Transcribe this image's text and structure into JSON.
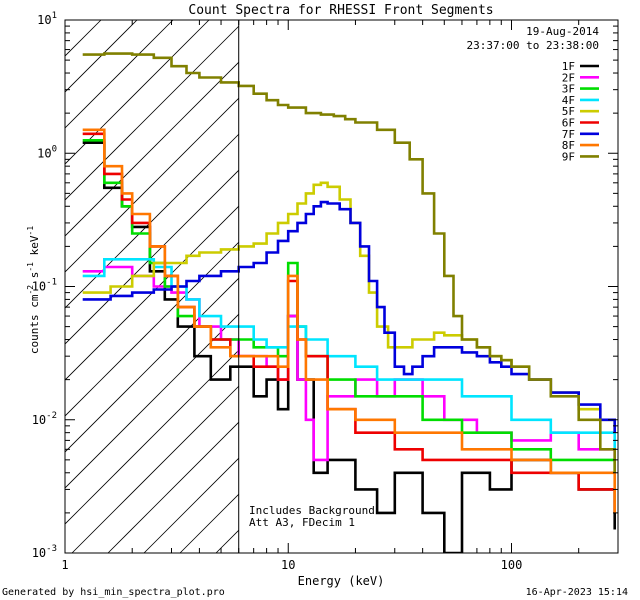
{
  "chart_data": {
    "type": "line",
    "title": "Count Spectra for RHESSI Front Segments",
    "xlabel": "Energy (keV)",
    "ylabel_main": "counts cm",
    "ylabel_sup1": "-2",
    "ylabel_mid": " s",
    "ylabel_sup2": "-1",
    "ylabel_end": " keV",
    "ylabel_sup3": "-1",
    "xscale": "log",
    "yscale": "log",
    "xlim": [
      1,
      300
    ],
    "ylim": [
      0.001,
      10
    ],
    "x_ticks": [
      {
        "v": 1,
        "label": "1"
      },
      {
        "v": 10,
        "label": "10"
      },
      {
        "v": 100,
        "label": "100"
      }
    ],
    "y_ticks": [
      {
        "v": 10,
        "base": "10",
        "exp": "1"
      },
      {
        "v": 1,
        "base": "10",
        "exp": "0"
      },
      {
        "v": 0.1,
        "base": "10",
        "exp": "-1"
      },
      {
        "v": 0.01,
        "base": "10",
        "exp": "-2"
      },
      {
        "v": 0.001,
        "base": "10",
        "exp": "-3"
      }
    ],
    "date": "19-Aug-2014",
    "time_range": "23:37:00 to 23:38:00",
    "threshold_energy_kev": 6,
    "annotation_1": "Includes Background",
    "annotation_2": "Att A3, FDecim 1",
    "series": [
      {
        "name": "1F",
        "color": "#000000",
        "points": [
          [
            1.2,
            1.2
          ],
          [
            1.5,
            0.55
          ],
          [
            1.8,
            0.4
          ],
          [
            2.0,
            0.28
          ],
          [
            2.4,
            0.13
          ],
          [
            2.8,
            0.08
          ],
          [
            3.2,
            0.05
          ],
          [
            3.8,
            0.03
          ],
          [
            4.5,
            0.02
          ],
          [
            5.5,
            0.025
          ],
          [
            7,
            0.015
          ],
          [
            8,
            0.02
          ],
          [
            9,
            0.012
          ],
          [
            10,
            0.06
          ],
          [
            11,
            0.02
          ],
          [
            13,
            0.004
          ],
          [
            15,
            0.005
          ],
          [
            20,
            0.003
          ],
          [
            25,
            0.002
          ],
          [
            30,
            0.004
          ],
          [
            40,
            0.002
          ],
          [
            50,
            0.001
          ],
          [
            60,
            0.004
          ],
          [
            80,
            0.003
          ],
          [
            100,
            0.005
          ],
          [
            150,
            0.004
          ],
          [
            200,
            0.003
          ],
          [
            290,
            0.0015
          ]
        ]
      },
      {
        "name": "2F",
        "color": "#ff00ff",
        "points": [
          [
            1.2,
            0.13
          ],
          [
            1.5,
            0.14
          ],
          [
            2.0,
            0.12
          ],
          [
            2.5,
            0.1
          ],
          [
            3.0,
            0.09
          ],
          [
            3.5,
            0.08
          ],
          [
            4.0,
            0.05
          ],
          [
            5.0,
            0.04
          ],
          [
            6,
            0.03
          ],
          [
            7,
            0.03
          ],
          [
            8,
            0.025
          ],
          [
            9,
            0.02
          ],
          [
            10,
            0.06
          ],
          [
            11,
            0.02
          ],
          [
            12,
            0.01
          ],
          [
            13,
            0.005
          ],
          [
            15,
            0.015
          ],
          [
            20,
            0.02
          ],
          [
            25,
            0.015
          ],
          [
            30,
            0.02
          ],
          [
            40,
            0.015
          ],
          [
            50,
            0.01
          ],
          [
            70,
            0.008
          ],
          [
            100,
            0.007
          ],
          [
            150,
            0.008
          ],
          [
            200,
            0.006
          ],
          [
            290,
            0.005
          ]
        ]
      },
      {
        "name": "3F",
        "color": "#00dd00",
        "points": [
          [
            1.2,
            1.25
          ],
          [
            1.5,
            0.6
          ],
          [
            1.8,
            0.4
          ],
          [
            2.0,
            0.25
          ],
          [
            2.4,
            0.15
          ],
          [
            2.8,
            0.1
          ],
          [
            3.2,
            0.06
          ],
          [
            3.8,
            0.05
          ],
          [
            4.5,
            0.04
          ],
          [
            5.5,
            0.04
          ],
          [
            7,
            0.035
          ],
          [
            9,
            0.03
          ],
          [
            10,
            0.15
          ],
          [
            11,
            0.05
          ],
          [
            12,
            0.03
          ],
          [
            15,
            0.02
          ],
          [
            20,
            0.015
          ],
          [
            30,
            0.015
          ],
          [
            40,
            0.01
          ],
          [
            60,
            0.008
          ],
          [
            100,
            0.006
          ],
          [
            150,
            0.005
          ],
          [
            200,
            0.005
          ],
          [
            290,
            0.004
          ]
        ]
      },
      {
        "name": "4F",
        "color": "#00e5ff",
        "points": [
          [
            1.2,
            0.12
          ],
          [
            1.5,
            0.16
          ],
          [
            2.0,
            0.16
          ],
          [
            2.5,
            0.14
          ],
          [
            3.0,
            0.1
          ],
          [
            3.5,
            0.08
          ],
          [
            4.0,
            0.06
          ],
          [
            5.0,
            0.05
          ],
          [
            6,
            0.05
          ],
          [
            7,
            0.04
          ],
          [
            8,
            0.035
          ],
          [
            10,
            0.05
          ],
          [
            12,
            0.04
          ],
          [
            15,
            0.03
          ],
          [
            20,
            0.025
          ],
          [
            25,
            0.02
          ],
          [
            30,
            0.02
          ],
          [
            40,
            0.02
          ],
          [
            60,
            0.015
          ],
          [
            100,
            0.01
          ],
          [
            150,
            0.008
          ],
          [
            200,
            0.008
          ],
          [
            290,
            0.006
          ]
        ]
      },
      {
        "name": "5F",
        "color": "#cccc00",
        "points": [
          [
            1.2,
            0.09
          ],
          [
            1.6,
            0.1
          ],
          [
            2.0,
            0.12
          ],
          [
            2.5,
            0.15
          ],
          [
            3.0,
            0.15
          ],
          [
            3.5,
            0.17
          ],
          [
            4.0,
            0.18
          ],
          [
            5.0,
            0.19
          ],
          [
            6.0,
            0.2
          ],
          [
            7.0,
            0.21
          ],
          [
            8.0,
            0.25
          ],
          [
            9.0,
            0.3
          ],
          [
            10.0,
            0.35
          ],
          [
            11,
            0.42
          ],
          [
            12,
            0.5
          ],
          [
            13,
            0.58
          ],
          [
            14,
            0.6
          ],
          [
            15,
            0.56
          ],
          [
            17,
            0.45
          ],
          [
            19,
            0.3
          ],
          [
            21,
            0.17
          ],
          [
            23,
            0.09
          ],
          [
            25,
            0.05
          ],
          [
            28,
            0.035
          ],
          [
            32,
            0.035
          ],
          [
            36,
            0.04
          ],
          [
            40,
            0.04
          ],
          [
            45,
            0.045
          ],
          [
            50,
            0.043
          ],
          [
            60,
            0.04
          ],
          [
            70,
            0.035
          ],
          [
            80,
            0.03
          ],
          [
            90,
            0.028
          ],
          [
            100,
            0.025
          ],
          [
            120,
            0.02
          ],
          [
            150,
            0.016
          ],
          [
            200,
            0.012
          ],
          [
            250,
            0.01
          ],
          [
            290,
            0.008
          ]
        ]
      },
      {
        "name": "6F",
        "color": "#ee0000",
        "points": [
          [
            1.2,
            1.4
          ],
          [
            1.5,
            0.7
          ],
          [
            1.8,
            0.45
          ],
          [
            2.0,
            0.3
          ],
          [
            2.4,
            0.2
          ],
          [
            2.8,
            0.12
          ],
          [
            3.2,
            0.07
          ],
          [
            3.8,
            0.05
          ],
          [
            4.5,
            0.04
          ],
          [
            5.5,
            0.03
          ],
          [
            7,
            0.025
          ],
          [
            9,
            0.02
          ],
          [
            10,
            0.11
          ],
          [
            11,
            0.04
          ],
          [
            12,
            0.03
          ],
          [
            15,
            0.012
          ],
          [
            20,
            0.008
          ],
          [
            30,
            0.006
          ],
          [
            40,
            0.005
          ],
          [
            60,
            0.005
          ],
          [
            100,
            0.004
          ],
          [
            150,
            0.004
          ],
          [
            200,
            0.003
          ],
          [
            290,
            0.002
          ]
        ]
      },
      {
        "name": "7F",
        "color": "#0000dd",
        "points": [
          [
            1.2,
            0.08
          ],
          [
            1.6,
            0.085
          ],
          [
            2.0,
            0.09
          ],
          [
            2.5,
            0.095
          ],
          [
            3.0,
            0.1
          ],
          [
            3.5,
            0.11
          ],
          [
            4.0,
            0.12
          ],
          [
            5.0,
            0.13
          ],
          [
            6.0,
            0.14
          ],
          [
            7.0,
            0.15
          ],
          [
            8.0,
            0.18
          ],
          [
            9.0,
            0.22
          ],
          [
            10.0,
            0.26
          ],
          [
            11,
            0.3
          ],
          [
            12,
            0.35
          ],
          [
            13,
            0.4
          ],
          [
            14,
            0.43
          ],
          [
            15,
            0.42
          ],
          [
            17,
            0.38
          ],
          [
            19,
            0.3
          ],
          [
            21,
            0.2
          ],
          [
            23,
            0.11
          ],
          [
            25,
            0.07
          ],
          [
            27,
            0.045
          ],
          [
            30,
            0.025
          ],
          [
            33,
            0.022
          ],
          [
            36,
            0.025
          ],
          [
            40,
            0.03
          ],
          [
            45,
            0.035
          ],
          [
            50,
            0.035
          ],
          [
            60,
            0.032
          ],
          [
            70,
            0.03
          ],
          [
            80,
            0.027
          ],
          [
            90,
            0.025
          ],
          [
            100,
            0.022
          ],
          [
            120,
            0.02
          ],
          [
            150,
            0.016
          ],
          [
            200,
            0.013
          ],
          [
            250,
            0.01
          ],
          [
            290,
            0.008
          ]
        ]
      },
      {
        "name": "8F",
        "color": "#ff7700",
        "points": [
          [
            1.2,
            1.5
          ],
          [
            1.5,
            0.8
          ],
          [
            1.8,
            0.5
          ],
          [
            2.0,
            0.35
          ],
          [
            2.4,
            0.2
          ],
          [
            2.8,
            0.12
          ],
          [
            3.2,
            0.07
          ],
          [
            3.8,
            0.05
          ],
          [
            4.5,
            0.035
          ],
          [
            5.5,
            0.03
          ],
          [
            7,
            0.03
          ],
          [
            9,
            0.025
          ],
          [
            10,
            0.12
          ],
          [
            11,
            0.04
          ],
          [
            12,
            0.02
          ],
          [
            15,
            0.012
          ],
          [
            20,
            0.01
          ],
          [
            30,
            0.008
          ],
          [
            40,
            0.008
          ],
          [
            60,
            0.006
          ],
          [
            100,
            0.005
          ],
          [
            150,
            0.004
          ],
          [
            200,
            0.004
          ],
          [
            290,
            0.002
          ]
        ]
      },
      {
        "name": "9F",
        "color": "#808000",
        "points": [
          [
            1.2,
            5.5
          ],
          [
            1.5,
            5.6
          ],
          [
            2.0,
            5.5
          ],
          [
            2.5,
            5.2
          ],
          [
            3.0,
            4.5
          ],
          [
            3.5,
            4.0
          ],
          [
            4.0,
            3.7
          ],
          [
            5.0,
            3.4
          ],
          [
            6.0,
            3.2
          ],
          [
            7.0,
            2.8
          ],
          [
            8.0,
            2.5
          ],
          [
            9.0,
            2.3
          ],
          [
            10,
            2.2
          ],
          [
            12,
            2.0
          ],
          [
            14,
            1.95
          ],
          [
            16,
            1.9
          ],
          [
            18,
            1.8
          ],
          [
            20,
            1.7
          ],
          [
            25,
            1.5
          ],
          [
            30,
            1.2
          ],
          [
            35,
            0.9
          ],
          [
            40,
            0.5
          ],
          [
            45,
            0.25
          ],
          [
            50,
            0.12
          ],
          [
            55,
            0.06
          ],
          [
            60,
            0.04
          ],
          [
            70,
            0.035
          ],
          [
            80,
            0.03
          ],
          [
            90,
            0.028
          ],
          [
            100,
            0.025
          ],
          [
            120,
            0.02
          ],
          [
            150,
            0.015
          ],
          [
            200,
            0.01
          ],
          [
            250,
            0.006
          ],
          [
            290,
            0.004
          ]
        ]
      }
    ]
  },
  "footer": {
    "generated_by": "Generated by hsi_min_spectra_plot.pro",
    "timestamp": "16-Apr-2023 15:14"
  }
}
